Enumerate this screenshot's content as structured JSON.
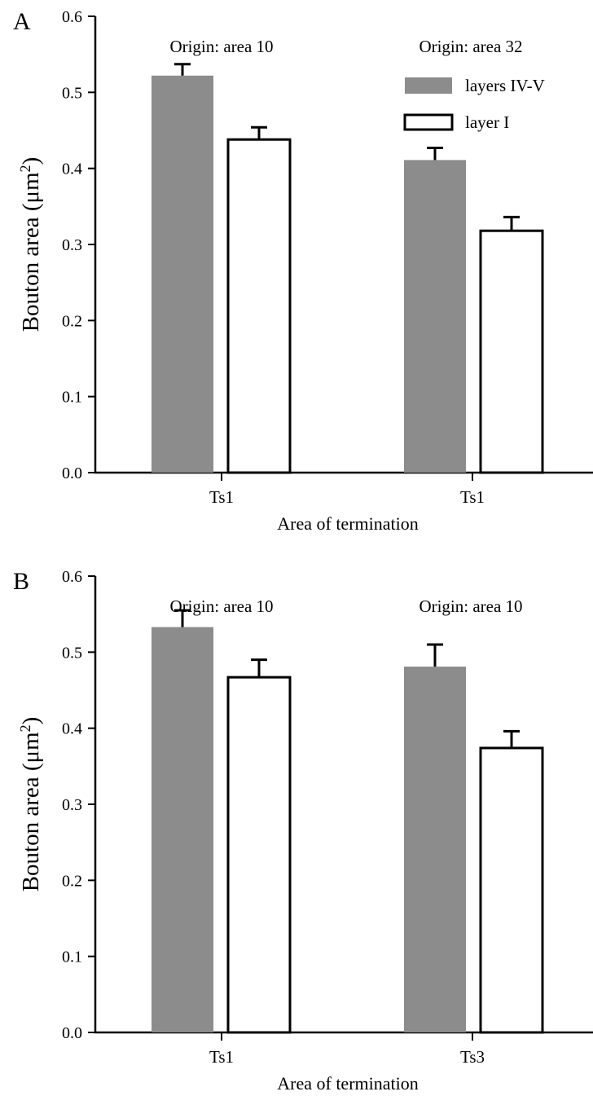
{
  "chart_data": [
    {
      "panel_label": "A",
      "type": "bar",
      "categories": [
        "Ts1",
        "Ts1"
      ],
      "group_labels": [
        "Origin: area 10",
        "Origin: area 32"
      ],
      "series": [
        {
          "name": "layers IV-V",
          "values": [
            0.522,
            0.411
          ],
          "errors": [
            0.015,
            0.016
          ],
          "fill": "#8c8c8c"
        },
        {
          "name": "layer I",
          "values": [
            0.438,
            0.318
          ],
          "errors": [
            0.016,
            0.018
          ],
          "fill": "#ffffff"
        }
      ],
      "xlabel": "Area of termination",
      "ylabel": {
        "main": "Bouton area (μm",
        "sup": "2",
        "end": ")"
      },
      "yticks": [
        "0.0",
        "0.1",
        "0.2",
        "0.3",
        "0.4",
        "0.5",
        "0.6"
      ],
      "ylim": [
        0,
        0.6
      ],
      "legend": "top-right",
      "grid": false
    },
    {
      "panel_label": "B",
      "type": "bar",
      "categories": [
        "Ts1",
        "Ts3"
      ],
      "group_labels": [
        "Origin: area 10",
        "Origin: area 10"
      ],
      "series": [
        {
          "name": "layers IV-V",
          "values": [
            0.533,
            0.481
          ],
          "errors": [
            0.022,
            0.029
          ],
          "fill": "#8c8c8c"
        },
        {
          "name": "layer I",
          "values": [
            0.467,
            0.374
          ],
          "errors": [
            0.023,
            0.022
          ],
          "fill": "#ffffff"
        }
      ],
      "xlabel": "Area of termination",
      "ylabel": {
        "main": "Bouton area (μm",
        "sup": "2",
        "end": ")"
      },
      "yticks": [
        "0.0",
        "0.1",
        "0.2",
        "0.3",
        "0.4",
        "0.5",
        "0.6"
      ],
      "ylim": [
        0,
        0.6
      ],
      "legend": "none",
      "grid": false
    }
  ]
}
